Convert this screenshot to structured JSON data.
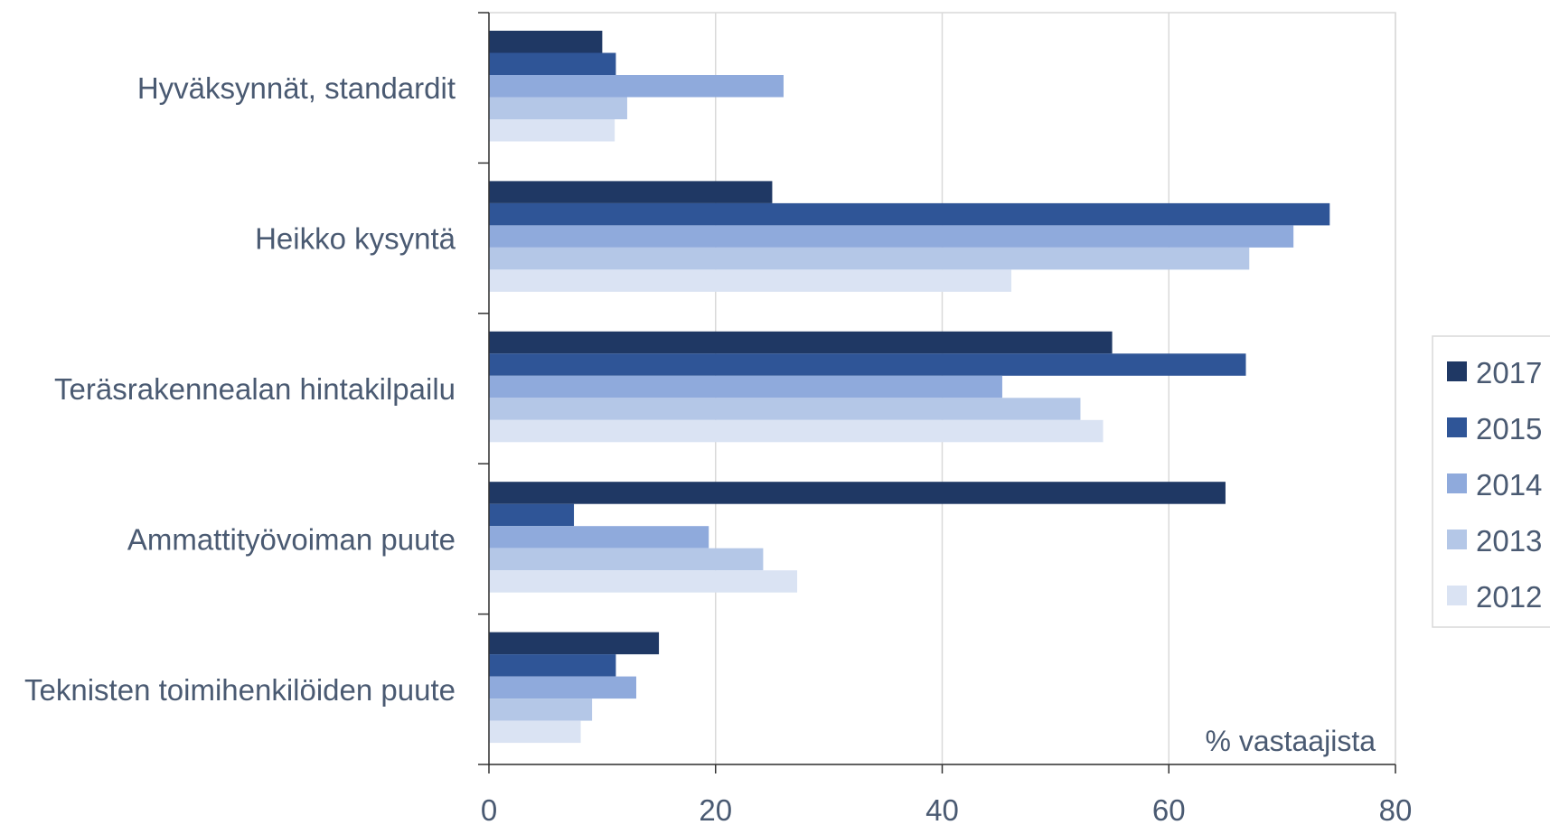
{
  "chart_data": {
    "type": "bar",
    "orientation": "horizontal",
    "categories": [
      "Hyväksynnät, standardit",
      "Heikko kysyntä",
      "Teräsrakennealan hintakilpailu",
      "Ammattityövoiman puute",
      "Teknisten toimihenkilöiden puute"
    ],
    "series": [
      {
        "name": "2017",
        "color": "#1f3864",
        "values": [
          10,
          25,
          55,
          65,
          15
        ]
      },
      {
        "name": "2015",
        "color": "#2f5597",
        "values": [
          11.2,
          74.2,
          66.8,
          7.5,
          11.2
        ]
      },
      {
        "name": "2014",
        "color": "#8faadc",
        "values": [
          26,
          71,
          45.3,
          19.4,
          13
        ]
      },
      {
        "name": "2013",
        "color": "#b4c7e7",
        "values": [
          12.2,
          67.1,
          52.2,
          24.2,
          9.1
        ]
      },
      {
        "name": "2012",
        "color": "#dae3f3",
        "values": [
          11.1,
          46.1,
          54.2,
          27.2,
          8.1
        ]
      }
    ],
    "xlim": [
      0,
      80
    ],
    "xticks": [
      "0",
      "20",
      "40",
      "60",
      "80"
    ],
    "annotation": "% vastaajista",
    "grid": "vertical",
    "legend_position": "right"
  }
}
